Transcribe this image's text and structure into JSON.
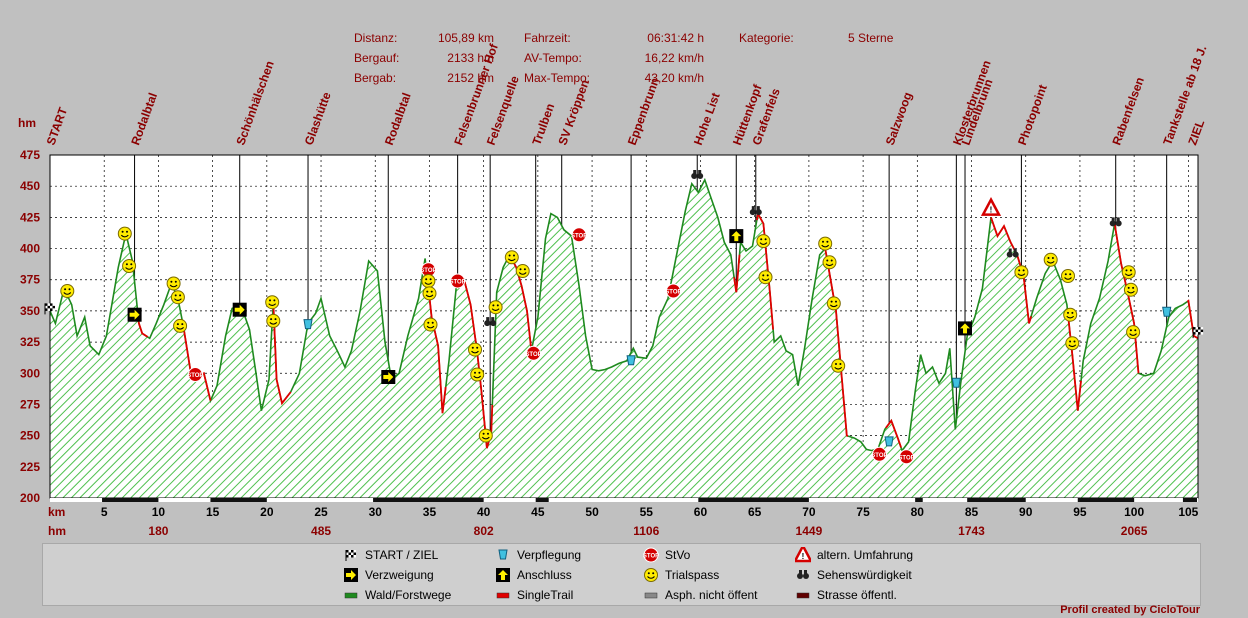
{
  "stats": {
    "rows": [
      {
        "label": "Distanz:",
        "value": "105,89 km"
      },
      {
        "label": "Bergauf:",
        "value": "2133 hm"
      },
      {
        "label": "Bergab:",
        "value": "2152 hm"
      },
      {
        "label": "Fahrzeit:",
        "value": "06:31:42 h"
      },
      {
        "label": "AV-Tempo:",
        "value": "16,22 km/h"
      },
      {
        "label": "Max-Tempo:",
        "value": "43,20 km/h"
      },
      {
        "label": "Kategorie:",
        "value": "5 Sterne"
      }
    ]
  },
  "chart_data": {
    "type": "area",
    "ylabel": "hm",
    "xlabel": "km",
    "xlim": [
      0,
      105.89
    ],
    "ylim": [
      200,
      475
    ],
    "yticks": [
      200,
      225,
      250,
      275,
      300,
      325,
      350,
      375,
      400,
      425,
      450,
      475
    ],
    "xticks": [
      5,
      10,
      15,
      20,
      25,
      30,
      35,
      40,
      45,
      50,
      55,
      60,
      65,
      70,
      75,
      80,
      85,
      90,
      95,
      100,
      105
    ],
    "cumulative_climb": [
      {
        "km": 10,
        "hm": "180"
      },
      {
        "km": 25,
        "hm": "485"
      },
      {
        "km": 40,
        "hm": "802"
      },
      {
        "km": 55,
        "hm": "1106"
      },
      {
        "km": 70,
        "hm": "1449"
      },
      {
        "km": 85,
        "hm": "1743"
      },
      {
        "km": 100,
        "hm": "2065"
      }
    ],
    "series": [
      {
        "values": [
          [
            0,
            350
          ],
          [
            0.5,
            340
          ],
          [
            1.3,
            368
          ],
          [
            2,
            355
          ],
          [
            2.5,
            330
          ],
          [
            3.2,
            345
          ],
          [
            3.7,
            322
          ],
          [
            4.5,
            315
          ],
          [
            5.2,
            330
          ],
          [
            6.3,
            385
          ],
          [
            7.0,
            412
          ],
          [
            7.6,
            390
          ],
          [
            8.2,
            340
          ],
          [
            8.5,
            332
          ],
          [
            9.2,
            328
          ],
          [
            9.8,
            340
          ],
          [
            10.5,
            355
          ],
          [
            11.2,
            372
          ],
          [
            11.8,
            360
          ],
          [
            12.3,
            338
          ],
          [
            13.0,
            300
          ],
          [
            13.6,
            297
          ],
          [
            14.2,
            300
          ],
          [
            14.8,
            278
          ],
          [
            15.4,
            290
          ],
          [
            16.2,
            330
          ],
          [
            16.8,
            352
          ],
          [
            17.6,
            355
          ],
          [
            18.4,
            335
          ],
          [
            19.0,
            300
          ],
          [
            19.5,
            270
          ],
          [
            20.2,
            295
          ],
          [
            20.6,
            357
          ],
          [
            20.9,
            295
          ],
          [
            21.4,
            276
          ],
          [
            22.2,
            285
          ],
          [
            23.0,
            300
          ],
          [
            23.8,
            340
          ],
          [
            24.5,
            348
          ],
          [
            25.0,
            360
          ],
          [
            25.8,
            330
          ],
          [
            26.5,
            318
          ],
          [
            27.2,
            305
          ],
          [
            27.8,
            318
          ],
          [
            28.6,
            350
          ],
          [
            29.4,
            390
          ],
          [
            30.2,
            382
          ],
          [
            30.9,
            325
          ],
          [
            31.5,
            295
          ],
          [
            32.2,
            300
          ],
          [
            33.0,
            330
          ],
          [
            34.0,
            360
          ],
          [
            34.6,
            392
          ],
          [
            35.2,
            345
          ],
          [
            35.8,
            322
          ],
          [
            36.2,
            268
          ],
          [
            36.8,
            310
          ],
          [
            37.5,
            372
          ],
          [
            38.2,
            375
          ],
          [
            38.8,
            355
          ],
          [
            39.4,
            317
          ],
          [
            39.8,
            285
          ],
          [
            40.3,
            240
          ],
          [
            40.7,
            252
          ],
          [
            41.2,
            365
          ],
          [
            41.8,
            385
          ],
          [
            42.4,
            395
          ],
          [
            43.0,
            385
          ],
          [
            43.5,
            370
          ],
          [
            44.0,
            350
          ],
          [
            44.4,
            318
          ],
          [
            45.0,
            345
          ],
          [
            45.7,
            408
          ],
          [
            46.2,
            428
          ],
          [
            46.8,
            425
          ],
          [
            47.4,
            415
          ],
          [
            48.1,
            410
          ],
          [
            48.8,
            370
          ],
          [
            49.4,
            330
          ],
          [
            50.0,
            303
          ],
          [
            50.6,
            302
          ],
          [
            51.2,
            303
          ],
          [
            51.8,
            305
          ],
          [
            52.5,
            308
          ],
          [
            53.2,
            310
          ],
          [
            53.8,
            320
          ],
          [
            54.2,
            313
          ],
          [
            55.0,
            312
          ],
          [
            55.6,
            322
          ],
          [
            56.2,
            345
          ],
          [
            57.0,
            360
          ],
          [
            57.8,
            395
          ],
          [
            58.6,
            430
          ],
          [
            59.2,
            452
          ],
          [
            59.8,
            445
          ],
          [
            60.4,
            455
          ],
          [
            61.0,
            440
          ],
          [
            61.6,
            425
          ],
          [
            62.2,
            405
          ],
          [
            62.8,
            395
          ],
          [
            63.3,
            365
          ],
          [
            63.7,
            405
          ],
          [
            64.2,
            398
          ],
          [
            64.8,
            402
          ],
          [
            65.3,
            428
          ],
          [
            65.8,
            420
          ],
          [
            66.4,
            365
          ],
          [
            66.8,
            325
          ],
          [
            67.4,
            330
          ],
          [
            67.9,
            318
          ],
          [
            68.5,
            315
          ],
          [
            69.0,
            290
          ],
          [
            69.6,
            320
          ],
          [
            70.3,
            360
          ],
          [
            71.0,
            395
          ],
          [
            71.5,
            400
          ],
          [
            72.0,
            375
          ],
          [
            72.5,
            350
          ],
          [
            73.0,
            300
          ],
          [
            73.5,
            250
          ],
          [
            74.2,
            248
          ],
          [
            74.8,
            245
          ],
          [
            75.3,
            239
          ],
          [
            75.8,
            238
          ],
          [
            76.4,
            240
          ],
          [
            77.0,
            255
          ],
          [
            77.6,
            262
          ],
          [
            78.2,
            248
          ],
          [
            78.6,
            238
          ],
          [
            79.2,
            245
          ],
          [
            79.8,
            285
          ],
          [
            80.3,
            315
          ],
          [
            80.8,
            300
          ],
          [
            81.4,
            305
          ],
          [
            82.0,
            292
          ],
          [
            82.6,
            300
          ],
          [
            83.0,
            320
          ],
          [
            83.5,
            255
          ],
          [
            84.0,
            292
          ],
          [
            84.6,
            330
          ],
          [
            85.3,
            345
          ],
          [
            86.0,
            368
          ],
          [
            86.8,
            425
          ],
          [
            87.4,
            410
          ],
          [
            88.0,
            418
          ],
          [
            88.6,
            405
          ],
          [
            89.2,
            395
          ],
          [
            89.8,
            378
          ],
          [
            90.3,
            340
          ],
          [
            91.0,
            360
          ],
          [
            91.8,
            380
          ],
          [
            92.5,
            390
          ],
          [
            93.2,
            375
          ],
          [
            93.8,
            355
          ],
          [
            94.3,
            315
          ],
          [
            94.8,
            270
          ],
          [
            95.3,
            310
          ],
          [
            96.0,
            340
          ],
          [
            96.8,
            360
          ],
          [
            97.6,
            390
          ],
          [
            98.2,
            420
          ],
          [
            98.8,
            388
          ],
          [
            99.4,
            365
          ],
          [
            100.0,
            340
          ],
          [
            100.4,
            300
          ],
          [
            101.0,
            298
          ],
          [
            101.8,
            300
          ],
          [
            102.5,
            318
          ],
          [
            103.2,
            345
          ],
          [
            103.8,
            352
          ],
          [
            104.5,
            355
          ],
          [
            105.0,
            358
          ],
          [
            105.5,
            330
          ],
          [
            105.89,
            328
          ]
        ]
      }
    ]
  },
  "waypoints": [
    {
      "km": 0,
      "label": "START"
    },
    {
      "km": 7.8,
      "label": "Rodalbtal"
    },
    {
      "km": 17.5,
      "label": "Schönhälschen"
    },
    {
      "km": 23.8,
      "label": "Glashütte"
    },
    {
      "km": 31.2,
      "label": "Rodalbtal"
    },
    {
      "km": 37.6,
      "label": "Felsenbrunner Hof"
    },
    {
      "km": 40.6,
      "label": "Felsenquelle"
    },
    {
      "km": 44.8,
      "label": "Trulben"
    },
    {
      "km": 47.2,
      "label": "SV Kröppen"
    },
    {
      "km": 53.6,
      "label": "Eppenbrunn"
    },
    {
      "km": 59.7,
      "label": "Hohe List"
    },
    {
      "km": 63.3,
      "label": "Hüttenkopf"
    },
    {
      "km": 65.1,
      "label": "Grafenfels"
    },
    {
      "km": 77.4,
      "label": "Salzwoog"
    },
    {
      "km": 83.6,
      "label": "Klosterbrunnen"
    },
    {
      "km": 84.4,
      "label": "Lindelbrunn"
    },
    {
      "km": 89.6,
      "label": "Photopoint"
    },
    {
      "km": 98.3,
      "label": "Rabenfelsen"
    },
    {
      "km": 103.0,
      "label": "Tankstelle ab 18 J."
    },
    {
      "km": 105.3,
      "label": "ZIEL"
    }
  ],
  "markers": [
    {
      "km": 0,
      "hm": 352,
      "type": "flag"
    },
    {
      "km": 1.6,
      "hm": 366,
      "type": "smiley"
    },
    {
      "km": 6.9,
      "hm": 412,
      "type": "smiley"
    },
    {
      "km": 7.3,
      "hm": 386,
      "type": "smiley"
    },
    {
      "km": 7.8,
      "hm": 347,
      "type": "arrow-right"
    },
    {
      "km": 11.4,
      "hm": 372,
      "type": "smiley"
    },
    {
      "km": 11.8,
      "hm": 361,
      "type": "smiley"
    },
    {
      "km": 12.0,
      "hm": 338,
      "type": "smiley"
    },
    {
      "km": 13.4,
      "hm": 299,
      "type": "stop"
    },
    {
      "km": 17.5,
      "hm": 351,
      "type": "arrow-right"
    },
    {
      "km": 20.5,
      "hm": 357,
      "type": "smiley"
    },
    {
      "km": 20.6,
      "hm": 342,
      "type": "smiley"
    },
    {
      "km": 23.8,
      "hm": 339,
      "type": "cup"
    },
    {
      "km": 31.2,
      "hm": 297,
      "type": "arrow-right"
    },
    {
      "km": 34.9,
      "hm": 383,
      "type": "stop"
    },
    {
      "km": 34.9,
      "hm": 374,
      "type": "smiley"
    },
    {
      "km": 35.0,
      "hm": 364,
      "type": "smiley"
    },
    {
      "km": 35.1,
      "hm": 339,
      "type": "smiley"
    },
    {
      "km": 37.6,
      "hm": 374,
      "type": "stop"
    },
    {
      "km": 39.2,
      "hm": 319,
      "type": "smiley"
    },
    {
      "km": 39.4,
      "hm": 299,
      "type": "smiley"
    },
    {
      "km": 40.2,
      "hm": 250,
      "type": "smiley"
    },
    {
      "km": 40.6,
      "hm": 341,
      "type": "binoculars"
    },
    {
      "km": 41.1,
      "hm": 353,
      "type": "smiley"
    },
    {
      "km": 42.6,
      "hm": 393,
      "type": "smiley"
    },
    {
      "km": 43.6,
      "hm": 382,
      "type": "smiley"
    },
    {
      "km": 44.6,
      "hm": 316,
      "type": "stop"
    },
    {
      "km": 48.8,
      "hm": 411,
      "type": "stop"
    },
    {
      "km": 53.6,
      "hm": 310,
      "type": "cup"
    },
    {
      "km": 57.5,
      "hm": 366,
      "type": "stop"
    },
    {
      "km": 59.7,
      "hm": 459,
      "type": "binoculars"
    },
    {
      "km": 63.3,
      "hm": 410,
      "type": "arrow-up"
    },
    {
      "km": 65.1,
      "hm": 430,
      "type": "binoculars"
    },
    {
      "km": 65.8,
      "hm": 406,
      "type": "smiley"
    },
    {
      "km": 66.0,
      "hm": 377,
      "type": "smiley"
    },
    {
      "km": 71.5,
      "hm": 404,
      "type": "smiley"
    },
    {
      "km": 71.9,
      "hm": 389,
      "type": "smiley"
    },
    {
      "km": 72.3,
      "hm": 356,
      "type": "smiley"
    },
    {
      "km": 72.7,
      "hm": 306,
      "type": "smiley"
    },
    {
      "km": 76.5,
      "hm": 235,
      "type": "stop"
    },
    {
      "km": 77.4,
      "hm": 245,
      "type": "cup"
    },
    {
      "km": 79.0,
      "hm": 233,
      "type": "stop"
    },
    {
      "km": 83.6,
      "hm": 292,
      "type": "cup"
    },
    {
      "km": 84.4,
      "hm": 336,
      "type": "arrow-up"
    },
    {
      "km": 86.8,
      "hm": 432,
      "type": "warning"
    },
    {
      "km": 88.8,
      "hm": 396,
      "type": "binoculars"
    },
    {
      "km": 89.6,
      "hm": 381,
      "type": "smiley"
    },
    {
      "km": 92.3,
      "hm": 391,
      "type": "smiley"
    },
    {
      "km": 93.9,
      "hm": 378,
      "type": "smiley"
    },
    {
      "km": 94.1,
      "hm": 347,
      "type": "smiley"
    },
    {
      "km": 94.3,
      "hm": 324,
      "type": "smiley"
    },
    {
      "km": 98.3,
      "hm": 421,
      "type": "binoculars"
    },
    {
      "km": 99.5,
      "hm": 381,
      "type": "smiley"
    },
    {
      "km": 99.7,
      "hm": 367,
      "type": "smiley"
    },
    {
      "km": 99.9,
      "hm": 333,
      "type": "smiley"
    },
    {
      "km": 103.0,
      "hm": 349,
      "type": "cup"
    },
    {
      "km": 105.9,
      "hm": 333,
      "type": "flag"
    }
  ],
  "singletrail_ranges": [
    [
      8.1,
      9.0
    ],
    [
      12.2,
      14.8
    ],
    [
      20.6,
      22.2
    ],
    [
      35.0,
      36.5
    ],
    [
      37.5,
      40.8
    ],
    [
      42.4,
      44.4
    ],
    [
      63.1,
      63.6
    ],
    [
      65.2,
      66.7
    ],
    [
      71.4,
      73.6
    ],
    [
      77.1,
      78.5
    ],
    [
      86.8,
      90.5
    ],
    [
      93.9,
      95.1
    ],
    [
      98.2,
      100.4
    ],
    [
      104.9,
      105.89
    ]
  ],
  "legend": {
    "items": [
      {
        "icon": "flag-icon",
        "label": "START / ZIEL"
      },
      {
        "icon": "cup-icon",
        "label": "Verpflegung"
      },
      {
        "icon": "stop-icon",
        "label": "StVo"
      },
      {
        "icon": "warning-icon",
        "label": "altern. Umfahrung"
      },
      {
        "icon": "arrow-right-icon",
        "label": "Verzweigung"
      },
      {
        "icon": "arrow-up-icon",
        "label": "Anschluss"
      },
      {
        "icon": "smiley-icon",
        "label": "Trialspass"
      },
      {
        "icon": "binoculars-icon",
        "label": "Sehenswürdigkeit"
      },
      {
        "icon": "green-line-icon",
        "label": "Wald/Forstwege"
      },
      {
        "icon": "red-line-icon",
        "label": "SingleTrail"
      },
      {
        "icon": "grey-line-icon",
        "label": "Asph. nicht öffent"
      },
      {
        "icon": "darkred-line-icon",
        "label": "Strasse öffentl."
      }
    ]
  },
  "credit": "Profil created by CicloTour",
  "colors": {
    "forest": "#1f8a1f",
    "trail": "#e00000",
    "fill_hatch": "#4fc04f",
    "label": "#8b0000",
    "axis": "#000000"
  }
}
